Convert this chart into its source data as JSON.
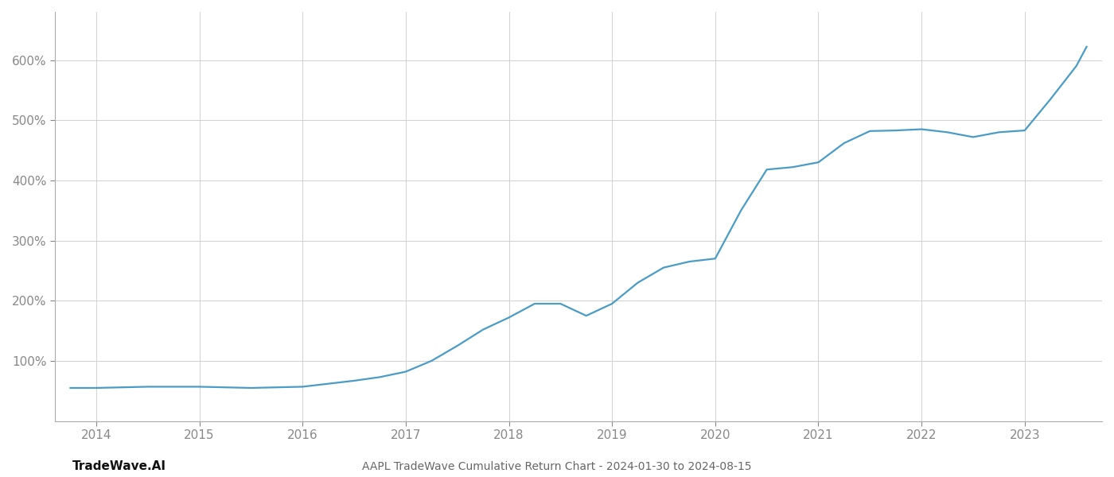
{
  "title": "AAPL TradeWave Cumulative Return Chart - 2024-01-30 to 2024-08-15",
  "watermark": "TradeWave.AI",
  "line_color": "#4a9cc7",
  "background_color": "#ffffff",
  "grid_color": "#d0d0d0",
  "tick_color": "#888888",
  "title_color": "#666666",
  "watermark_color": "#111111",
  "years": [
    2014,
    2015,
    2016,
    2017,
    2018,
    2019,
    2020,
    2021,
    2022,
    2023
  ],
  "x_values": [
    2013.75,
    2014.0,
    2014.25,
    2014.5,
    2014.75,
    2015.0,
    2015.25,
    2015.5,
    2015.75,
    2016.0,
    2016.25,
    2016.5,
    2016.75,
    2017.0,
    2017.25,
    2017.5,
    2017.75,
    2018.0,
    2018.25,
    2018.5,
    2018.75,
    2019.0,
    2019.25,
    2019.5,
    2019.75,
    2020.0,
    2020.25,
    2020.5,
    2020.75,
    2021.0,
    2021.25,
    2021.5,
    2021.75,
    2022.0,
    2022.25,
    2022.5,
    2022.75,
    2023.0,
    2023.25,
    2023.5,
    2023.6
  ],
  "y_values": [
    55,
    55,
    56,
    57,
    57,
    57,
    56,
    55,
    56,
    57,
    62,
    67,
    73,
    82,
    100,
    125,
    152,
    172,
    195,
    195,
    175,
    195,
    230,
    255,
    265,
    270,
    350,
    418,
    422,
    430,
    462,
    482,
    483,
    485,
    480,
    472,
    480,
    483,
    535,
    590,
    622
  ],
  "ylim": [
    0,
    680
  ],
  "yticks": [
    100,
    200,
    300,
    400,
    500,
    600
  ],
  "xlim_left": 2013.6,
  "xlim_right": 2023.75,
  "line_width": 1.6,
  "tick_fontsize": 11,
  "title_fontsize": 10,
  "watermark_fontsize": 11
}
